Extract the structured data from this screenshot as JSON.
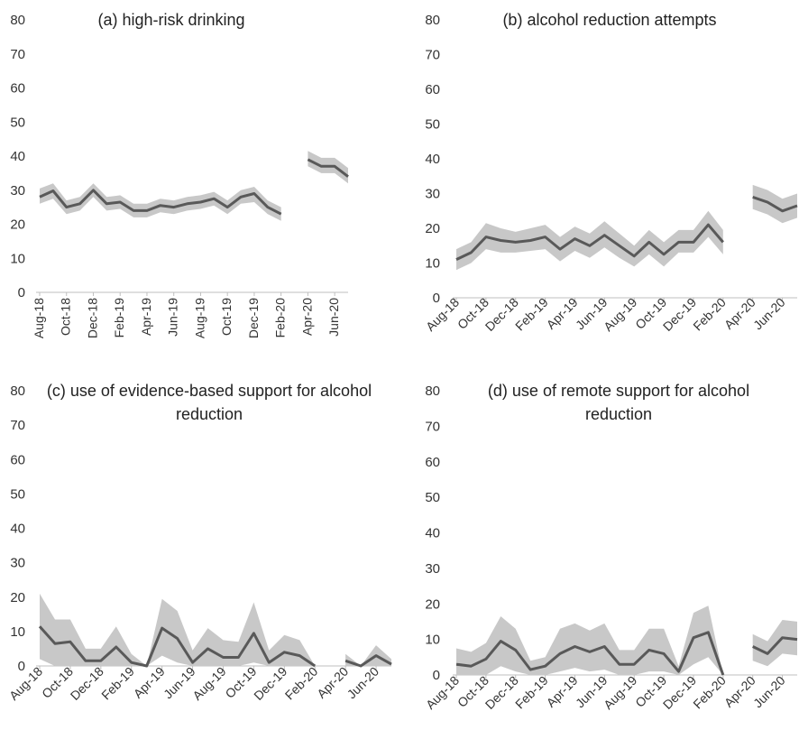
{
  "colors": {
    "band": "#c8c8c8",
    "line": "#595959",
    "axis": "#bfbfbf",
    "text": "#333333"
  },
  "chart_data": [
    {
      "type": "line",
      "title": "(a) high-risk drinking",
      "ylim": [
        0,
        80
      ],
      "yticks": [
        "0",
        "10",
        "20",
        "30",
        "40",
        "50",
        "60",
        "70",
        "80"
      ],
      "x": [
        "Aug-18",
        "Sep-18",
        "Oct-18",
        "Nov-18",
        "Dec-18",
        "Jan-19",
        "Feb-19",
        "Mar-19",
        "Apr-19",
        "May-19",
        "Jun-19",
        "Jul-19",
        "Aug-19",
        "Sep-19",
        "Oct-19",
        "Nov-19",
        "Dec-19",
        "Jan-20",
        "Feb-20",
        "Mar-20",
        "Apr-20",
        "May-20",
        "Jun-20",
        "Jul-20"
      ],
      "xtick_labels": [
        "Aug-18",
        "Oct-18",
        "Dec-18",
        "Feb-19",
        "Apr-19",
        "Jun-19",
        "Aug-19",
        "Oct-19",
        "Dec-19",
        "Feb-20",
        "Apr-20",
        "Jun-20"
      ],
      "series": [
        {
          "values": [
            28,
            29.8,
            25,
            26,
            30,
            26,
            26.5,
            24,
            24,
            25.5,
            25,
            26,
            26.5,
            27.5,
            25,
            28,
            29,
            25,
            23,
            null,
            39,
            37,
            37,
            34
          ],
          "lower": [
            26,
            27.5,
            23,
            24,
            28,
            24,
            24.5,
            22,
            22,
            23.5,
            23,
            24,
            24.5,
            25.5,
            23,
            26,
            26.5,
            23,
            21,
            null,
            37,
            35,
            35,
            32
          ],
          "upper": [
            30.5,
            32,
            27,
            28,
            32,
            28,
            28.5,
            26,
            26,
            27.5,
            27,
            28,
            28.5,
            29.5,
            27,
            30,
            31,
            27,
            25,
            null,
            41.5,
            39.5,
            39.5,
            36.5
          ]
        }
      ]
    },
    {
      "type": "line",
      "title": "(b) alcohol reduction attempts",
      "ylim": [
        0,
        80
      ],
      "yticks": [
        "0",
        "10",
        "20",
        "30",
        "40",
        "50",
        "60",
        "70",
        "80"
      ],
      "x": [
        "Aug-18",
        "Sep-18",
        "Oct-18",
        "Nov-18",
        "Dec-18",
        "Jan-19",
        "Feb-19",
        "Mar-19",
        "Apr-19",
        "May-19",
        "Jun-19",
        "Jul-19",
        "Aug-19",
        "Sep-19",
        "Oct-19",
        "Nov-19",
        "Dec-19",
        "Jan-20",
        "Feb-20",
        "Mar-20",
        "Apr-20",
        "May-20",
        "Jun-20",
        "Jul-20"
      ],
      "xtick_labels": [
        "Aug-18",
        "Oct-18",
        "Dec-18",
        "Feb-19",
        "Apr-19",
        "Jun-19",
        "Aug-19",
        "Oct-19",
        "Dec-19",
        "Feb-20",
        "Apr-20",
        "Jun-20"
      ],
      "series": [
        {
          "values": [
            11,
            13,
            17.5,
            16.5,
            16,
            16.5,
            17.5,
            14,
            17,
            15,
            18,
            15,
            12,
            16,
            12.5,
            16,
            16,
            21,
            16,
            null,
            29,
            27.5,
            25,
            26.5
          ],
          "lower": [
            8,
            10,
            14,
            13,
            13,
            13.5,
            14,
            10.5,
            13.5,
            11.5,
            14.5,
            11.5,
            9,
            12.5,
            9,
            13,
            13,
            17.5,
            12.5,
            null,
            25.5,
            24,
            21.5,
            23
          ],
          "upper": [
            14,
            16,
            21.5,
            20,
            19,
            20,
            21,
            17.5,
            20.5,
            18.5,
            22,
            18.5,
            15,
            19.5,
            16,
            19.5,
            19.5,
            25,
            19.5,
            null,
            32.5,
            31,
            28.5,
            30
          ]
        }
      ]
    },
    {
      "type": "line",
      "title": "(c) use of evidence-based support for alcohol reduction",
      "ylim": [
        0,
        80
      ],
      "yticks": [
        "0",
        "10",
        "20",
        "30",
        "40",
        "50",
        "60",
        "70",
        "80"
      ],
      "x": [
        "Aug-18",
        "Sep-18",
        "Oct-18",
        "Nov-18",
        "Dec-18",
        "Jan-19",
        "Feb-19",
        "Mar-19",
        "Apr-19",
        "May-19",
        "Jun-19",
        "Jul-19",
        "Aug-19",
        "Sep-19",
        "Oct-19",
        "Nov-19",
        "Dec-19",
        "Jan-20",
        "Feb-20",
        "Mar-20",
        "Apr-20",
        "May-20",
        "Jun-20",
        "Jul-20"
      ],
      "xtick_labels": [
        "Aug-18",
        "Oct-18",
        "Dec-18",
        "Feb-19",
        "Apr-19",
        "Jun-19",
        "Aug-19",
        "Oct-19",
        "Dec-19",
        "Feb-20",
        "Apr-20",
        "Jun-20"
      ],
      "series": [
        {
          "values": [
            11.5,
            6.5,
            7,
            1.5,
            1.5,
            5.5,
            1,
            0,
            11,
            8,
            1,
            5,
            2.5,
            2.5,
            9.5,
            1,
            4,
            3,
            0,
            null,
            1.5,
            0,
            3,
            0.5
          ],
          "lower": [
            2,
            0,
            0,
            0,
            0,
            0,
            0,
            0,
            3,
            1,
            0,
            0,
            0,
            0,
            1,
            0,
            0,
            0,
            0,
            null,
            0,
            0,
            0,
            0
          ],
          "upper": [
            21,
            13.5,
            13.5,
            5,
            5,
            11.5,
            3.5,
            0,
            19.5,
            16,
            4.5,
            11,
            7.5,
            7,
            18.5,
            4.5,
            9,
            7.5,
            0,
            null,
            3.5,
            0,
            6,
            2
          ]
        }
      ]
    },
    {
      "type": "line",
      "title": "(d) use of remote support for alcohol reduction",
      "ylim": [
        0,
        80
      ],
      "yticks": [
        "0",
        "10",
        "20",
        "30",
        "40",
        "50",
        "60",
        "70",
        "80"
      ],
      "x": [
        "Aug-18",
        "Sep-18",
        "Oct-18",
        "Nov-18",
        "Dec-18",
        "Jan-19",
        "Feb-19",
        "Mar-19",
        "Apr-19",
        "May-19",
        "Jun-19",
        "Jul-19",
        "Aug-19",
        "Sep-19",
        "Oct-19",
        "Nov-19",
        "Dec-19",
        "Jan-20",
        "Feb-20",
        "Mar-20",
        "Apr-20",
        "May-20",
        "Jun-20",
        "Jul-20"
      ],
      "xtick_labels": [
        "Aug-18",
        "Oct-18",
        "Dec-18",
        "Feb-19",
        "Apr-19",
        "Jun-19",
        "Aug-19",
        "Oct-19",
        "Dec-19",
        "Feb-20",
        "Apr-20",
        "Jun-20"
      ],
      "series": [
        {
          "values": [
            3,
            2.5,
            4.5,
            9.5,
            7,
            1.5,
            2.5,
            6,
            8,
            6.5,
            8,
            3,
            3,
            7,
            6,
            1,
            10.5,
            12,
            0,
            null,
            8,
            6,
            10.5,
            10
          ],
          "lower": [
            0,
            0,
            0,
            2.5,
            1,
            0,
            0,
            1,
            2,
            1,
            1.5,
            0,
            0,
            1,
            1,
            0,
            3,
            5,
            0,
            null,
            4,
            2.5,
            6,
            5.5
          ],
          "upper": [
            7.5,
            6.5,
            9,
            16.5,
            13,
            4,
            5,
            13,
            14.5,
            12.5,
            14.5,
            7,
            7,
            13,
            13,
            2.5,
            17.5,
            19.5,
            0,
            null,
            11.5,
            9.5,
            15.5,
            15
          ]
        }
      ]
    }
  ]
}
